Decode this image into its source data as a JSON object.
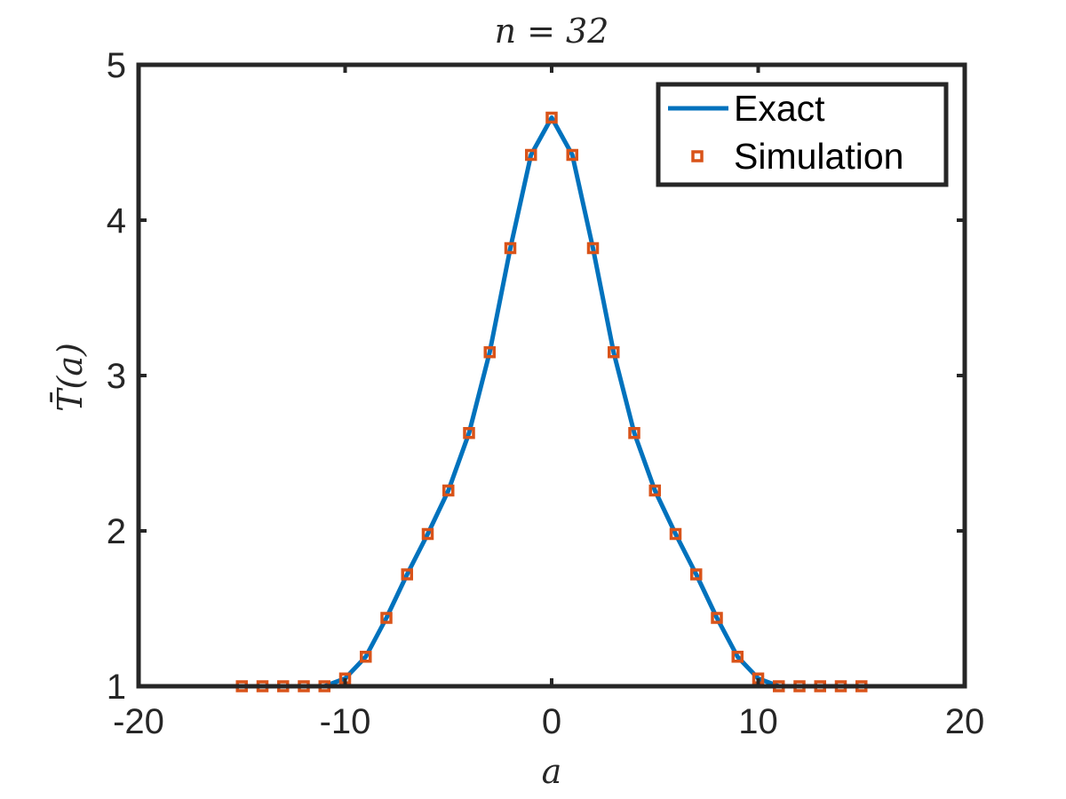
{
  "chart_data": {
    "type": "line",
    "title": "n = 32",
    "xlabel": "a",
    "ylabel": "T̄(a)",
    "xlim": [
      -20,
      20
    ],
    "ylim": [
      1,
      5
    ],
    "xticks": [
      -20,
      -10,
      0,
      10,
      20
    ],
    "yticks": [
      1,
      2,
      3,
      4,
      5
    ],
    "xtick_labels": [
      "-20",
      "-10",
      "0",
      "10",
      "20"
    ],
    "ytick_labels": [
      "1",
      "2",
      "3",
      "4",
      "5"
    ],
    "grid": false,
    "legend_position": "top-right",
    "x": [
      -15,
      -14,
      -13,
      -12,
      -11,
      -10,
      -9,
      -8,
      -7,
      -6,
      -5,
      -4,
      -3,
      -2,
      -1,
      0,
      1,
      2,
      3,
      4,
      5,
      6,
      7,
      8,
      9,
      10,
      11,
      12,
      13,
      14,
      15
    ],
    "series": [
      {
        "name": "Exact",
        "style": "line",
        "color": "#0072BD",
        "values": [
          1.0,
          1.0,
          1.0,
          1.0,
          1.0,
          1.05,
          1.19,
          1.44,
          1.72,
          1.98,
          2.26,
          2.63,
          3.15,
          3.82,
          4.42,
          4.66,
          4.42,
          3.82,
          3.15,
          2.63,
          2.26,
          1.98,
          1.72,
          1.44,
          1.19,
          1.05,
          1.0,
          1.0,
          1.0,
          1.0,
          1.0
        ]
      },
      {
        "name": "Simulation",
        "style": "markers",
        "color": "#D95319",
        "values": [
          1.0,
          1.0,
          1.0,
          1.0,
          1.0,
          1.05,
          1.19,
          1.44,
          1.72,
          1.98,
          2.26,
          2.63,
          3.15,
          3.82,
          4.42,
          4.66,
          4.42,
          3.82,
          3.15,
          2.63,
          2.26,
          1.98,
          1.72,
          1.44,
          1.19,
          1.05,
          1.0,
          1.0,
          1.0,
          1.0,
          1.0
        ]
      }
    ]
  }
}
